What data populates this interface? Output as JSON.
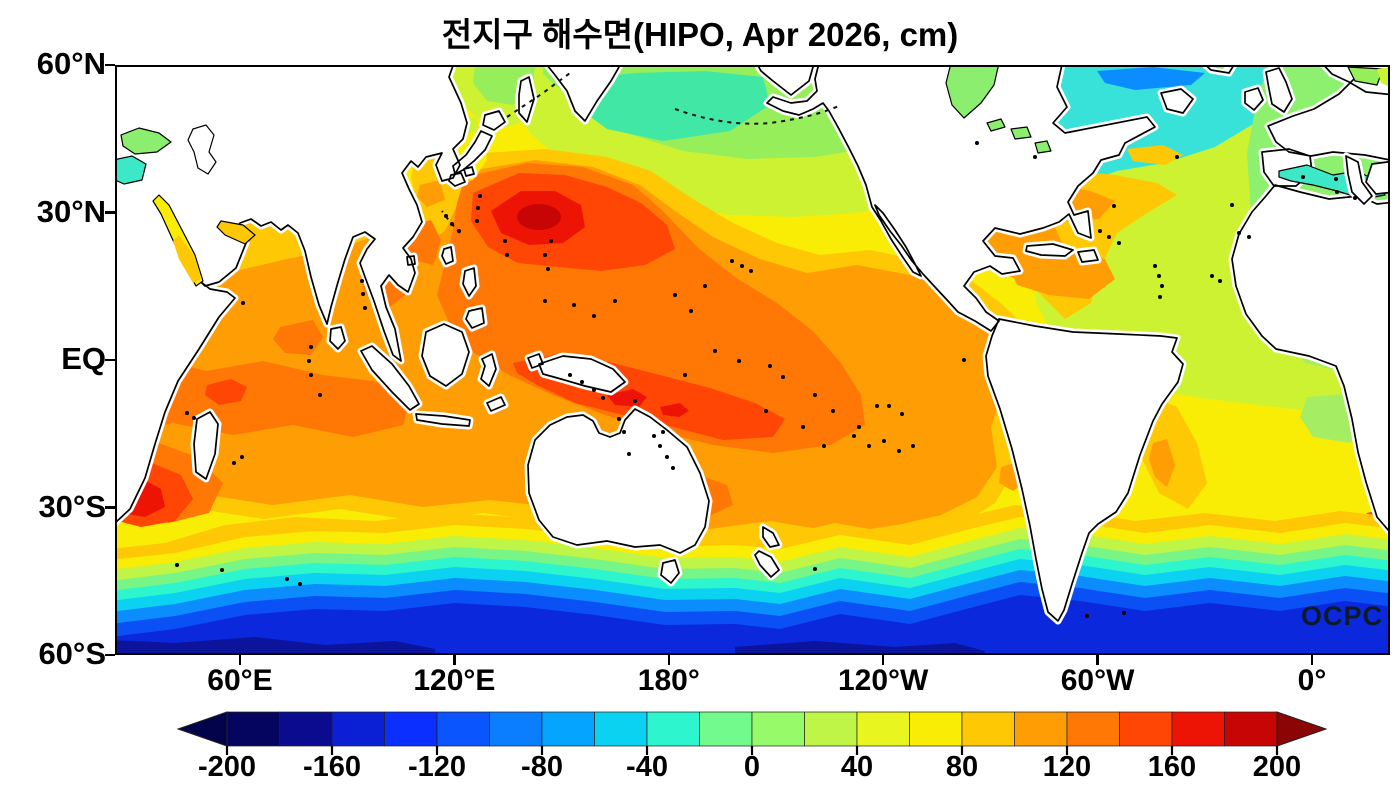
{
  "title": "전지구 해수면(HIPO, Apr 2026, cm)",
  "watermark": "OCPC",
  "axes": {
    "lat_tick_labels": [
      "60°N",
      "30°N",
      "EQ",
      "30°S",
      "60°S"
    ],
    "lon_tick_labels": [
      "60°E",
      "120°E",
      "180°",
      "120°W",
      "60°W",
      "0°"
    ]
  },
  "colorbar": {
    "tick_labels": [
      "-200",
      "-160",
      "-120",
      "-80",
      "-40",
      "0",
      "40",
      "80",
      "120",
      "160",
      "200"
    ],
    "segment_colors": [
      "#05055f",
      "#0b0b8f",
      "#0b1fd4",
      "#0b2fff",
      "#0b55ff",
      "#0b7dff",
      "#05a5ff",
      "#0bd2f0",
      "#2df5cd",
      "#73fa8c",
      "#96fa69",
      "#bef546",
      "#e8f51e",
      "#faed05",
      "#ffc805",
      "#ff9d05",
      "#ff7805",
      "#ff4605",
      "#ee1405",
      "#c80505"
    ],
    "arrow_left_color": "#03034b",
    "arrow_right_color": "#8c0505"
  },
  "colors": {
    "land": "#ffffff",
    "coastline": "#000000",
    "background": "#ffffff",
    "inland_sea_green": "#8cee6e",
    "mediterranean_teal": "#3ce8c8"
  },
  "chart_data": {
    "type": "heatmap",
    "title": "전지구 해수면(HIPO, Apr 2026, cm)",
    "variable": "global sea surface height",
    "units": "cm",
    "model_label": "HIPO",
    "date_label": "Apr 2026",
    "lat_axis": {
      "tick_labels": [
        "60°N",
        "30°N",
        "EQ",
        "30°S",
        "60°S"
      ],
      "range_deg": [
        -60,
        60
      ]
    },
    "lon_axis": {
      "tick_labels": [
        "60°E",
        "120°E",
        "180°",
        "120°W",
        "60°W",
        "0°"
      ]
    },
    "colorbar": {
      "min": -200,
      "max": 200,
      "interval": 20,
      "tick_values": [
        -200,
        -160,
        -120,
        -80,
        -40,
        0,
        40,
        80,
        120,
        160,
        200
      ],
      "colors": [
        "#05055f",
        "#0b0b8f",
        "#0b1fd4",
        "#0b2fff",
        "#0b55ff",
        "#0b7dff",
        "#05a5ff",
        "#0bd2f0",
        "#2df5cd",
        "#73fa8c",
        "#96fa69",
        "#bef546",
        "#e8f51e",
        "#faed05",
        "#ffc805",
        "#ff9d05",
        "#ff7805",
        "#ff4605",
        "#ee1405",
        "#c80505"
      ],
      "orientation": "horizontal",
      "position": "bottom",
      "arrow_ends": true
    },
    "grid": false,
    "annotations": [
      "OCPC"
    ],
    "features": [
      {
        "region": "Kuroshio extension east of Japan",
        "approx_value_cm": 180
      },
      {
        "region": "Tropical western Pacific warm pool",
        "approx_value_cm": 140
      },
      {
        "region": "Central North Pacific subtropics",
        "approx_value_cm": 110
      },
      {
        "region": "Eastern tropical Pacific",
        "approx_value_cm": 70
      },
      {
        "region": "Bering Sea / subpolar North Pacific",
        "approx_value_cm": -10
      },
      {
        "region": "Arabian Sea and Bay of Bengal",
        "approx_value_cm": 90
      },
      {
        "region": "Agulhas region southeast of Africa",
        "approx_value_cm": 165
      },
      {
        "region": "South of Africa at map right edge",
        "approx_value_cm": 170
      },
      {
        "region": "Gulf Stream / Sargasso Sea",
        "approx_value_cm": 85
      },
      {
        "region": "Northwest Atlantic subpolar gyre",
        "approx_value_cm": -55
      },
      {
        "region": "Eastern North Atlantic off Europe",
        "approx_value_cm": -5
      },
      {
        "region": "Mediterranean Sea",
        "approx_value_cm": -30
      },
      {
        "region": "South Atlantic mid-latitudes",
        "approx_value_cm": 40
      },
      {
        "region": "Southern Ocean near 55°S",
        "approx_value_cm": -90
      },
      {
        "region": "Southern Ocean at 60°S",
        "approx_value_cm": -170
      }
    ]
  }
}
